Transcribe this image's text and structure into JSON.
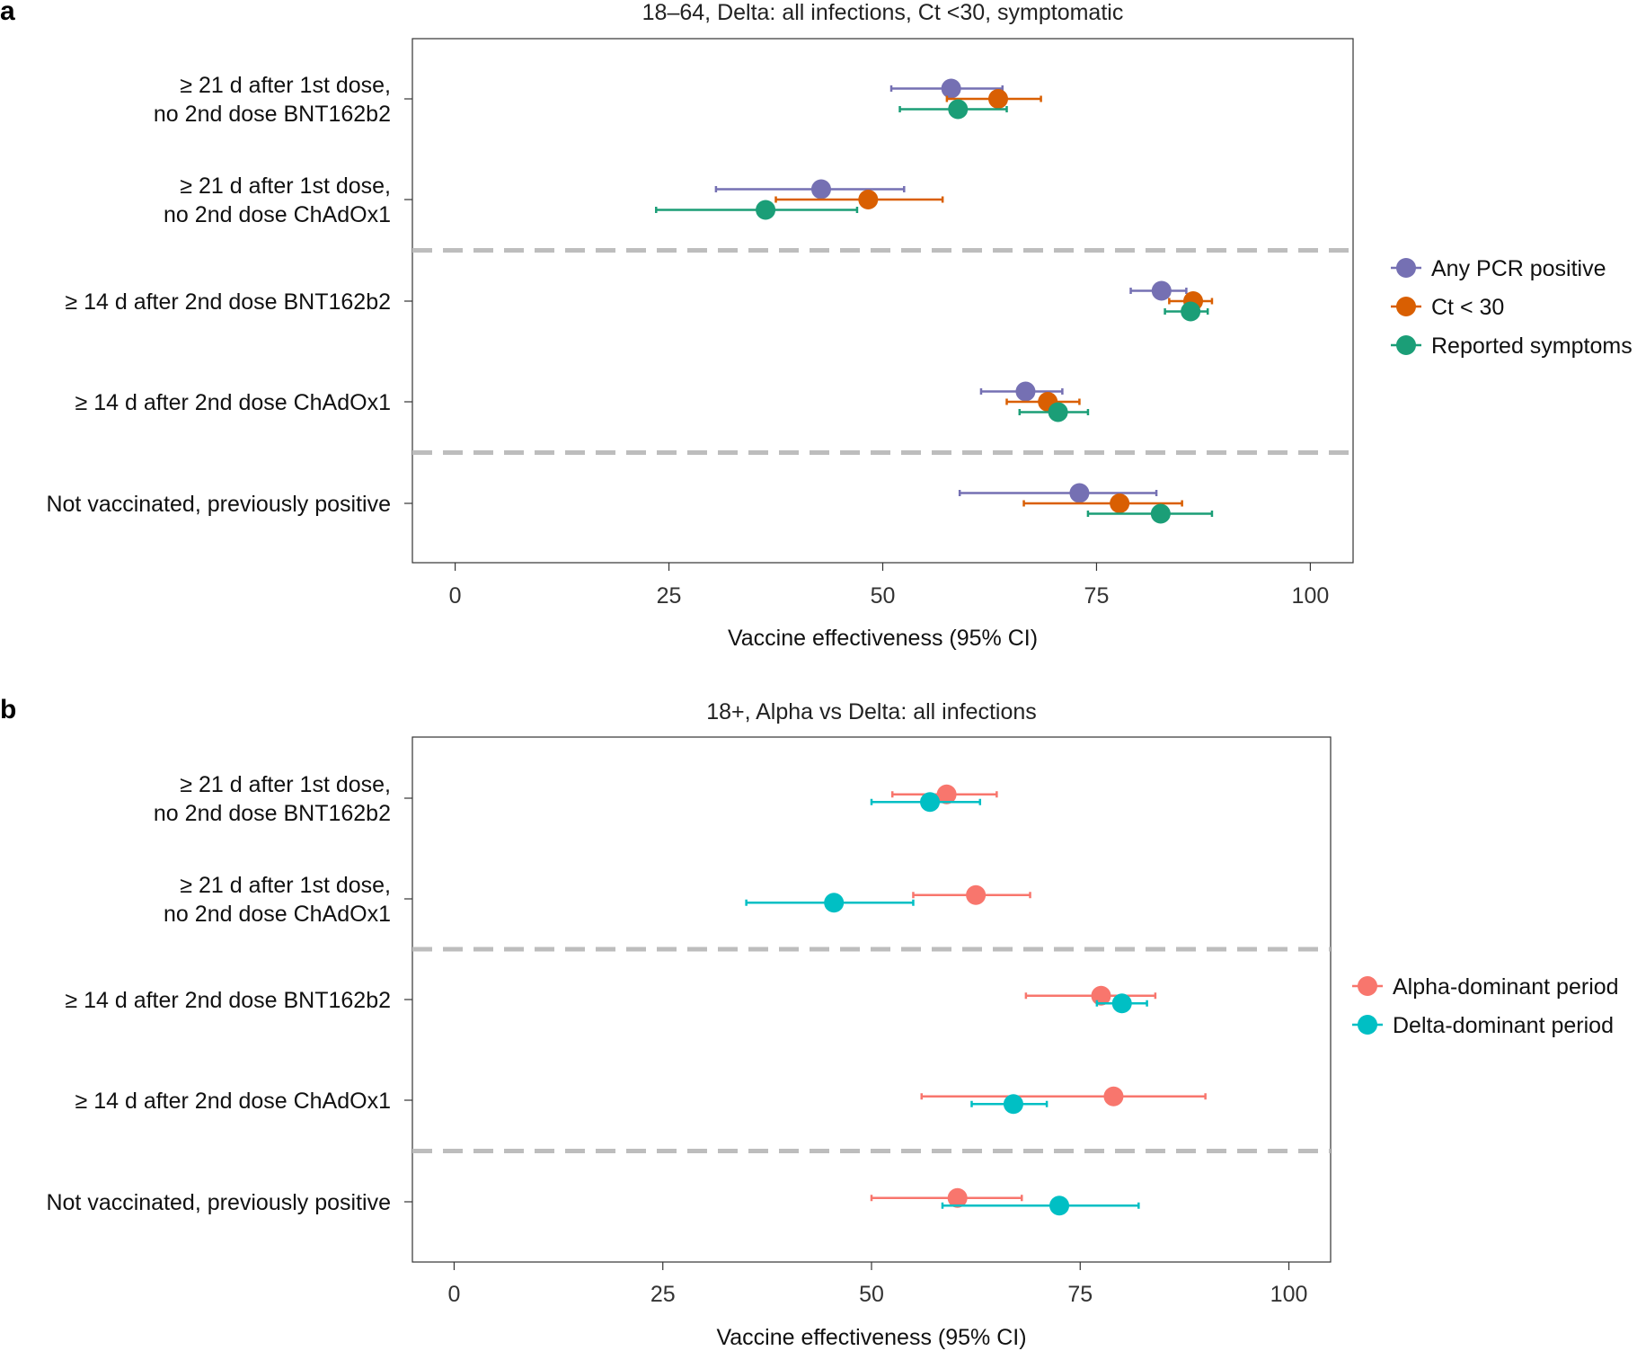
{
  "chart_data": [
    {
      "panel": "a",
      "type": "forest",
      "title": "18–64, Delta: all infections, Ct <30, symptomatic",
      "xlabel": "Vaccine effectiveness (95% CI)",
      "xlim": [
        -5,
        105
      ],
      "xticks": [
        0,
        25,
        50,
        75,
        100
      ],
      "categories": [
        [
          "≥ 21 d after 1st dose,",
          "no 2nd dose BNT162b2"
        ],
        [
          "≥ 21 d after 1st dose,",
          "no 2nd dose ChAdOx1"
        ],
        [
          "≥ 14 d after 2nd dose BNT162b2"
        ],
        [
          "≥ 14 d after 2nd dose ChAdOx1"
        ],
        [
          "Not vaccinated, previously positive"
        ]
      ],
      "separators_after": [
        1,
        3
      ],
      "series": [
        {
          "name": "Any PCR positive",
          "color": "#7570b3",
          "estimate": [
            58.0,
            42.8,
            82.6,
            66.7,
            73.0
          ],
          "lower": [
            51.0,
            30.5,
            79.0,
            61.5,
            59.0
          ],
          "upper": [
            64.0,
            52.5,
            85.5,
            71.0,
            82.0
          ]
        },
        {
          "name": "Ct < 30",
          "color": "#d95f02",
          "estimate": [
            63.5,
            48.3,
            86.3,
            69.3,
            77.7
          ],
          "lower": [
            57.5,
            37.5,
            83.5,
            64.5,
            66.5
          ],
          "upper": [
            68.5,
            57.0,
            88.5,
            73.0,
            85.0
          ]
        },
        {
          "name": "Reported symptoms",
          "color": "#1b9e77",
          "estimate": [
            58.8,
            36.3,
            86.0,
            70.5,
            82.5
          ],
          "lower": [
            52.0,
            23.5,
            83.0,
            66.0,
            74.0
          ],
          "upper": [
            64.5,
            47.0,
            88.0,
            74.0,
            88.5
          ]
        }
      ]
    },
    {
      "panel": "b",
      "type": "forest",
      "title": "18+, Alpha vs Delta: all infections",
      "xlabel": "Vaccine effectiveness (95% CI)",
      "xlim": [
        -5,
        105
      ],
      "xticks": [
        0,
        25,
        50,
        75,
        100
      ],
      "categories": [
        [
          "≥ 21 d after 1st dose,",
          "no 2nd dose BNT162b2"
        ],
        [
          "≥ 21 d after 1st dose,",
          "no 2nd dose ChAdOx1"
        ],
        [
          "≥ 14 d after 2nd dose BNT162b2"
        ],
        [
          "≥ 14 d after 2nd dose ChAdOx1"
        ],
        [
          "Not vaccinated, previously positive"
        ]
      ],
      "separators_after": [
        1,
        3
      ],
      "series": [
        {
          "name": "Alpha-dominant period",
          "color": "#f8766d",
          "estimate": [
            59.0,
            62.5,
            77.5,
            79.0,
            60.3
          ],
          "lower": [
            52.5,
            55.0,
            68.5,
            56.0,
            50.0
          ],
          "upper": [
            65.0,
            69.0,
            84.0,
            90.0,
            68.0
          ]
        },
        {
          "name": "Delta-dominant period",
          "color": "#00bfc4",
          "estimate": [
            57.0,
            45.5,
            80.0,
            67.0,
            72.5
          ],
          "lower": [
            50.0,
            35.0,
            77.0,
            62.0,
            58.5
          ],
          "upper": [
            63.0,
            55.0,
            83.0,
            71.0,
            82.0
          ]
        }
      ]
    }
  ]
}
